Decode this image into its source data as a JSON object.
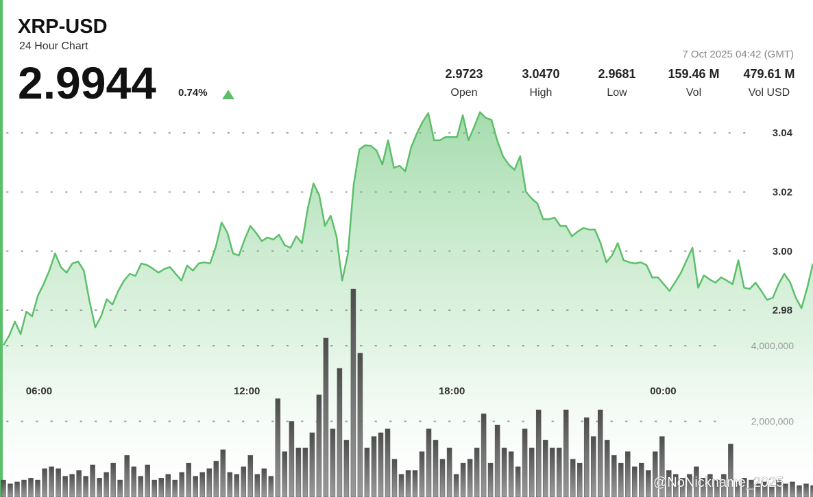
{
  "header": {
    "title": "XRP-USD",
    "subtitle": "24 Hour Chart",
    "price": "2.9944",
    "change": "0.74%",
    "timestamp": "7 Oct 2025 04:42 (GMT)",
    "stats": [
      {
        "value": "2.9723",
        "label": "Open"
      },
      {
        "value": "3.0470",
        "label": "High"
      },
      {
        "value": "2.9681",
        "label": "Low"
      },
      {
        "value": "159.46 M",
        "label": "Vol"
      },
      {
        "value": "479.61 M",
        "label": "Vol USD"
      }
    ]
  },
  "watermark": "@NoNickname_2025",
  "chart_data": [
    {
      "type": "area",
      "color": "#5cbf6a",
      "values": [
        2.9681,
        2.9714,
        2.9761,
        2.9719,
        2.9795,
        2.9779,
        2.9849,
        2.9888,
        2.9934,
        2.9992,
        2.9946,
        2.9927,
        2.9958,
        2.9965,
        2.9934,
        2.983,
        2.9742,
        2.9779,
        2.9837,
        2.9819,
        2.9865,
        2.99,
        2.9923,
        2.9916,
        2.9958,
        2.9953,
        2.9941,
        2.9927,
        2.9939,
        2.9946,
        2.9923,
        2.99,
        2.9951,
        2.9934,
        2.9958,
        2.9962,
        2.9958,
        3.0015,
        3.0097,
        3.0062,
        2.9992,
        2.9985,
        3.0039,
        3.0085,
        3.0062,
        3.0034,
        3.0046,
        3.0039,
        3.0055,
        3.002,
        3.0011,
        3.005,
        3.0027,
        3.0143,
        3.0229,
        3.0189,
        3.0085,
        3.012,
        3.005,
        2.99,
        2.9992,
        3.0224,
        3.0344,
        3.0358,
        3.0356,
        3.034,
        3.0293,
        3.0375,
        3.0282,
        3.0289,
        3.027,
        3.0351,
        3.0398,
        3.0437,
        3.0467,
        3.0375,
        3.0375,
        3.0386,
        3.0386,
        3.0386,
        3.046,
        3.0375,
        3.0421,
        3.047,
        3.0451,
        3.0444,
        3.0375,
        3.0321,
        3.0293,
        3.0275,
        3.0321,
        3.0201,
        3.0178,
        3.0161,
        3.0108,
        3.0108,
        3.0113,
        3.0085,
        3.0085,
        3.005,
        3.0066,
        3.0078,
        3.0073,
        3.0073,
        3.0027,
        2.9962,
        2.9985,
        3.0027,
        2.9969,
        2.9962,
        2.9958,
        2.9962,
        2.9953,
        2.9911,
        2.9911,
        2.9888,
        2.9865,
        2.9895,
        2.9927,
        2.9969,
        3.0011,
        2.9876,
        2.9918,
        2.9904,
        2.9893,
        2.9911,
        2.99,
        2.9888,
        2.9969,
        2.9876,
        2.9872,
        2.9893,
        2.9865,
        2.9835,
        2.9842,
        2.9888,
        2.9923,
        2.9895,
        2.9842,
        2.9807,
        2.9876,
        2.9958
      ],
      "xlim": [
        0,
        141
      ],
      "xticks": [
        {
          "value": 6.2,
          "label": "06:00"
        },
        {
          "value": 42.4,
          "label": "12:00"
        },
        {
          "value": 78.1,
          "label": "18:00"
        },
        {
          "value": 114.9,
          "label": "00:00"
        }
      ],
      "ylim": [
        2.92,
        3.05
      ],
      "yticks": [
        2.98,
        {
          "value": 3,
          "label": "3.00"
        },
        3.02,
        3.04
      ],
      "grid": true
    },
    {
      "type": "bar",
      "color": "#555555",
      "values": [
        450000,
        350000,
        400000,
        450000,
        500000,
        450000,
        750000,
        800000,
        750000,
        550000,
        600000,
        700000,
        550000,
        850000,
        500000,
        650000,
        900000,
        450000,
        1100000,
        800000,
        550000,
        850000,
        450000,
        500000,
        600000,
        450000,
        650000,
        900000,
        550000,
        650000,
        750000,
        950000,
        1250000,
        650000,
        600000,
        800000,
        1100000,
        600000,
        750000,
        550000,
        2600000,
        1200000,
        2000000,
        1300000,
        1300000,
        1700000,
        2700000,
        4200000,
        1800000,
        3400000,
        1500000,
        5500000,
        3800000,
        1300000,
        1600000,
        1700000,
        1800000,
        1000000,
        600000,
        700000,
        700000,
        1200000,
        1800000,
        1500000,
        1000000,
        1300000,
        600000,
        900000,
        1000000,
        1300000,
        2200000,
        900000,
        1900000,
        1300000,
        1200000,
        800000,
        1800000,
        1300000,
        2300000,
        1500000,
        1300000,
        1300000,
        2300000,
        1000000,
        900000,
        2100000,
        1600000,
        2300000,
        1500000,
        1100000,
        900000,
        1200000,
        800000,
        900000,
        700000,
        1200000,
        1600000,
        700000,
        600000,
        500000,
        600000,
        800000,
        500000,
        600000,
        450000,
        600000,
        1400000,
        400000,
        500000,
        450000,
        350000,
        400000,
        300000,
        450000,
        350000,
        400000,
        300000,
        350000,
        300000
      ],
      "ylim": [
        0,
        6000000
      ],
      "yticks": [
        {
          "value": 2000000,
          "label": "2,000,000"
        },
        {
          "value": 4000000,
          "label": "4,000,000"
        }
      ],
      "grid": true
    }
  ]
}
